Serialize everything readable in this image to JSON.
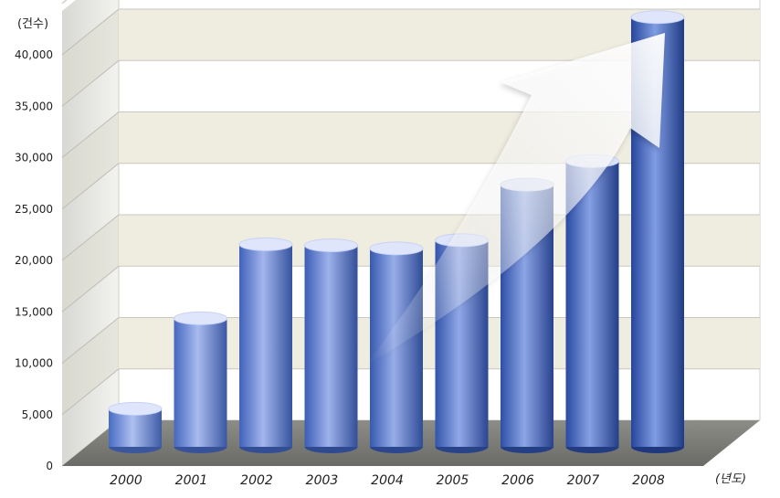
{
  "chart_data": {
    "type": "bar",
    "style": "3d-cylinder",
    "categories": [
      "2000",
      "2001",
      "2002",
      "2003",
      "2004",
      "2005",
      "2006",
      "2007",
      "2008"
    ],
    "values": [
      3700,
      12500,
      19700,
      19600,
      19300,
      20100,
      25500,
      27800,
      41800
    ],
    "ylabel": "(건수)",
    "xlabel": "(년도)",
    "ylim": [
      0,
      40000
    ],
    "yticks": [
      "0",
      "5,000",
      "10,000",
      "15,000",
      "20,000",
      "25,000",
      "30,000",
      "35,000",
      "40,000"
    ],
    "grid": true,
    "legend": "none",
    "annotation": "upward trend arrow",
    "colors": {
      "bar_light": "#aebff0",
      "bar_mid": "#5b7fd8",
      "bar_dark": "#1f3f95",
      "band": "#efece0",
      "floor": "#7a7a76"
    }
  }
}
